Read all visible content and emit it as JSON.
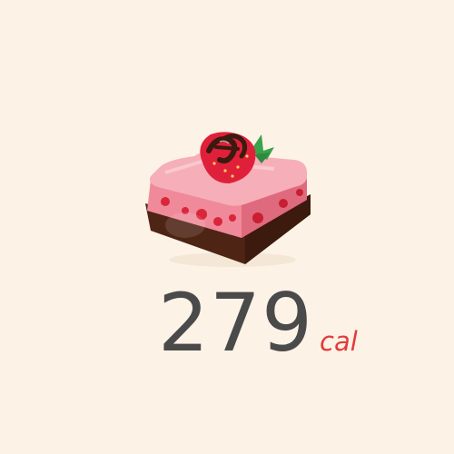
{
  "card": {
    "background": "#fdf2e6",
    "image": "strawberry-mousse-cake-illustration",
    "calories": "279",
    "unit": "cal",
    "calorie_color": "#4a4a4a",
    "unit_color": "#e33b3b"
  }
}
